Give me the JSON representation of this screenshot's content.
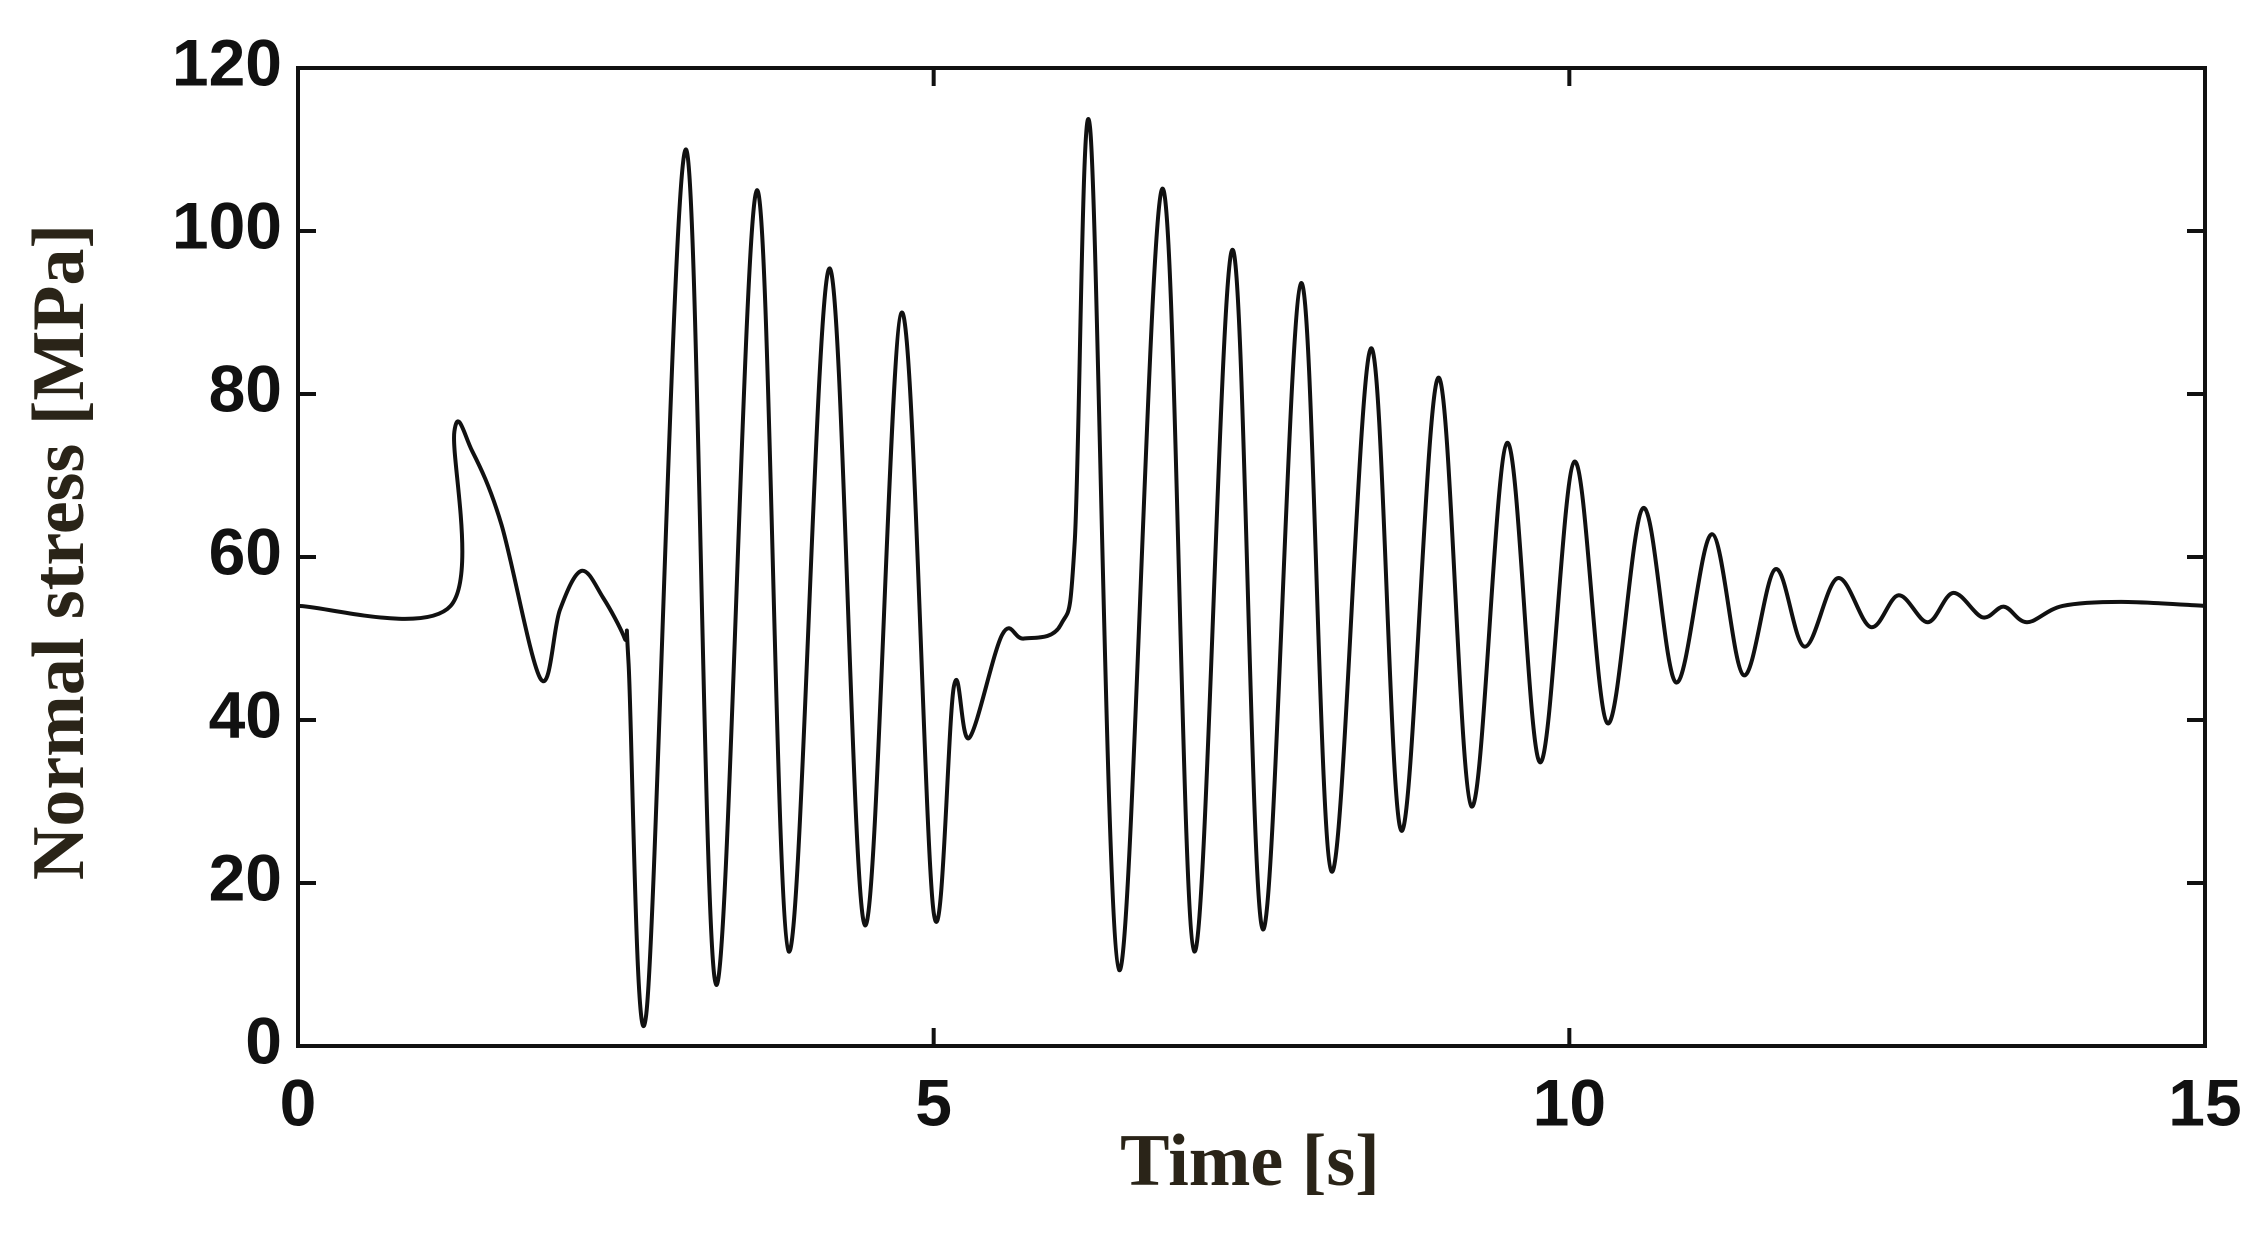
{
  "chart_data": {
    "type": "line",
    "xlabel": "Time [s]",
    "ylabel": "Normal stress [MPa]",
    "color": "#111111",
    "x": [
      0,
      1.2,
      1.23,
      1.37,
      1.6,
      1.91,
      2.06,
      2.23,
      2.4,
      2.57,
      2.6,
      2.74,
      3.05,
      3.29,
      3.61,
      3.86,
      4.18,
      4.46,
      4.75,
      5.0,
      5.16,
      5.28,
      5.54,
      5.71,
      6.0,
      6.11,
      6.23,
      6.46,
      6.8,
      7.05,
      7.35,
      7.59,
      7.89,
      8.13,
      8.44,
      8.68,
      8.97,
      9.23,
      9.51,
      9.77,
      10.04,
      10.3,
      10.58,
      10.84,
      11.12,
      11.37,
      11.62,
      11.85,
      12.11,
      12.37,
      12.59,
      12.82,
      13.02,
      13.25,
      13.42,
      13.6,
      13.88,
      14.34,
      15
    ],
    "values": [
      54,
      54,
      75.4,
      73,
      64,
      45,
      53.5,
      58.3,
      55,
      50,
      47,
      4,
      110,
      7.5,
      105,
      11.6,
      95.4,
      14.8,
      90,
      16.4,
      44.2,
      37.8,
      50.5,
      50,
      51.7,
      62,
      112.7,
      9.3,
      105.2,
      11.6,
      97.7,
      14.3,
      93.6,
      21.4,
      85.6,
      26.4,
      82,
      29.4,
      74,
      34.8,
      71.7,
      39.6,
      66,
      44.6,
      62.8,
      45.5,
      58.5,
      49,
      57.4,
      51.4,
      55.3,
      52,
      55.6,
      52.6,
      53.9,
      52,
      54,
      54.5,
      54
    ],
    "xlim": [
      0,
      15
    ],
    "xticks": [
      0,
      5,
      10,
      15
    ],
    "ylim": [
      0,
      120
    ],
    "yticks": [
      0,
      20,
      40,
      60,
      80,
      100,
      120
    ]
  }
}
